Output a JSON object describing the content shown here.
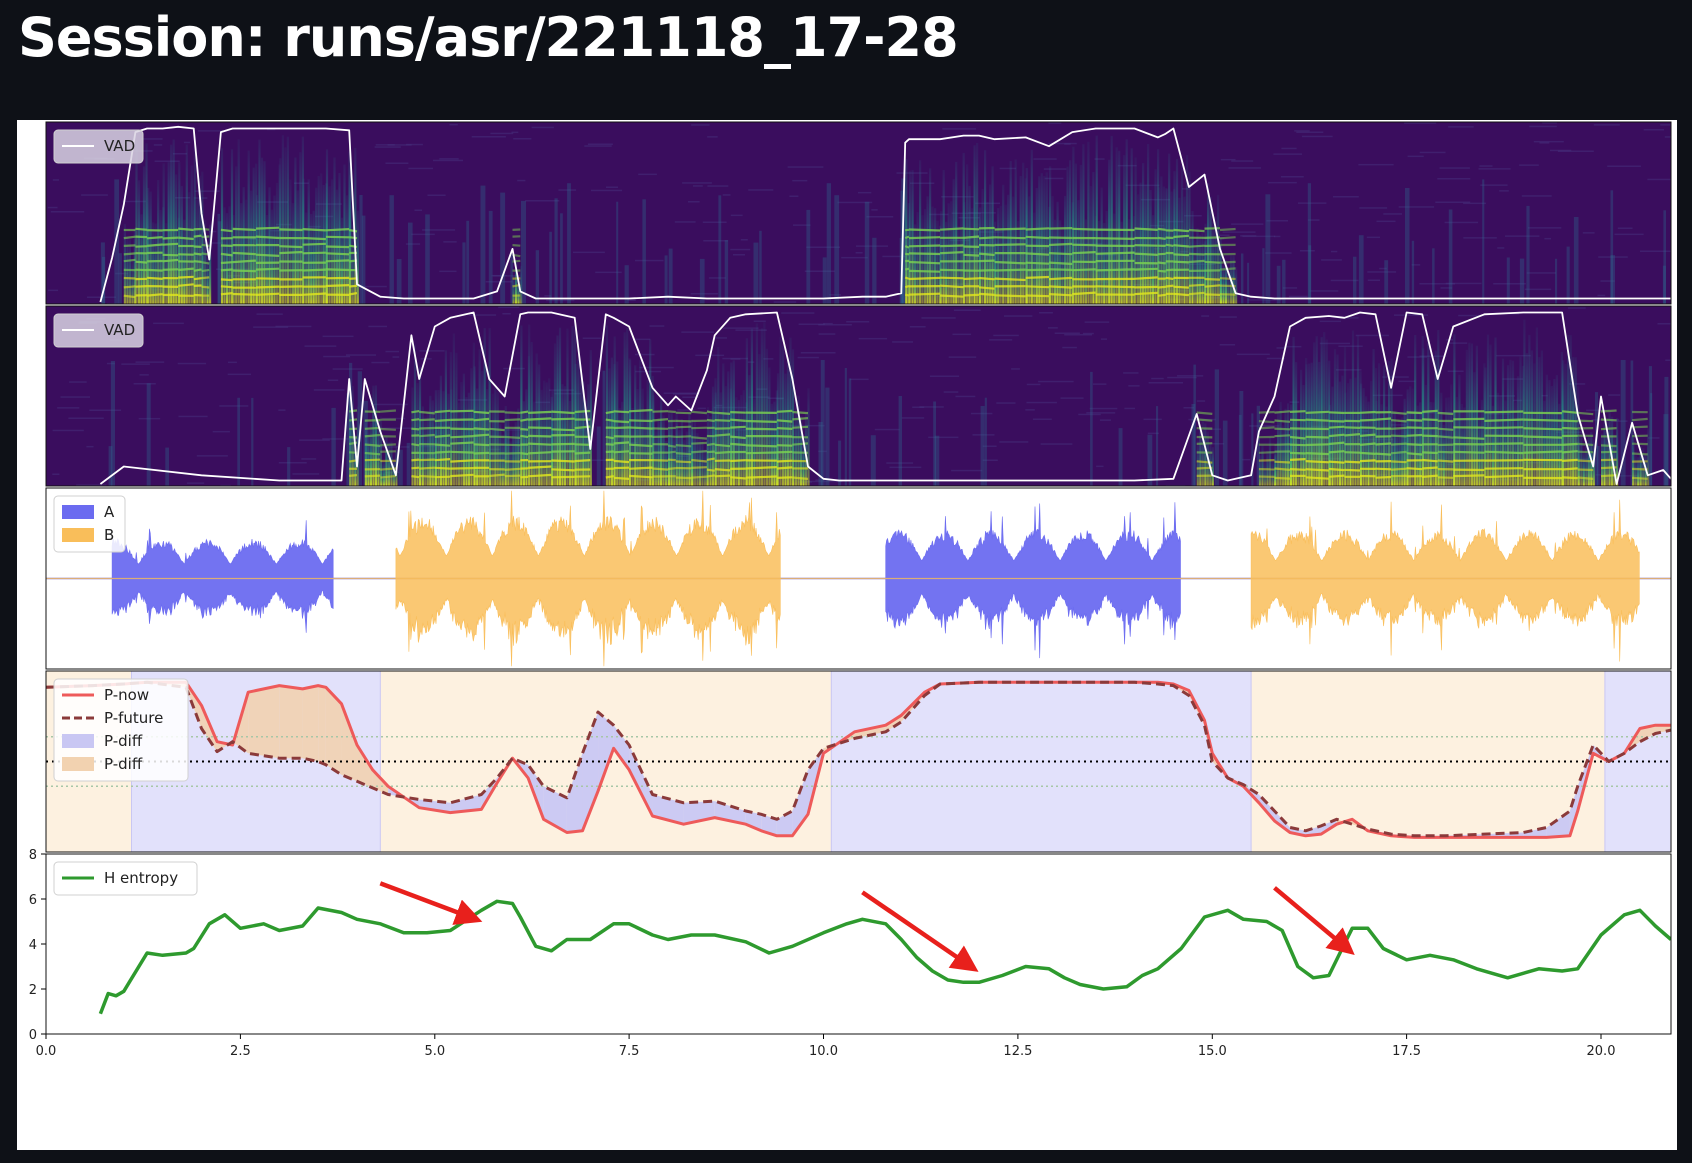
{
  "page": {
    "title": "Session: runs/asr/221118_17-28"
  },
  "colors": {
    "background": "#0e1117",
    "speaker_a": "#6b6bf0",
    "speaker_b": "#f9be5a",
    "p_now": "#ee5a5a",
    "p_future": "#8b3a3a",
    "p_diff_a": "#c9c7f3",
    "p_diff_b": "#f2d2b0",
    "entropy": "#2e9a2e",
    "arrows": "#e8201c",
    "vad": "#ffffff"
  },
  "chart_data": [
    {
      "type": "heatmap",
      "panel": "spectrogram-a",
      "xlim": [
        0,
        20.9
      ],
      "ylim": [
        0,
        1
      ],
      "legend": {
        "entries": [
          "VAD"
        ],
        "placement": "top-left"
      },
      "series": [
        {
          "name": "VAD",
          "x": [
            0.7,
            0.85,
            1.0,
            1.15,
            1.3,
            1.5,
            1.7,
            1.9,
            2.0,
            2.1,
            2.25,
            2.4,
            2.7,
            3.0,
            3.3,
            3.6,
            3.9,
            4.0,
            4.3,
            4.6,
            5.0,
            5.5,
            5.8,
            6.0,
            6.1,
            6.3,
            6.6,
            7.0,
            7.5,
            8.0,
            8.5,
            9.0,
            9.5,
            10.0,
            10.5,
            10.8,
            11.0,
            11.05,
            11.1,
            11.5,
            11.8,
            12.0,
            12.2,
            12.6,
            12.9,
            13.2,
            13.5,
            14.0,
            14.3,
            14.4,
            14.5,
            14.7,
            14.9,
            15.1,
            15.3,
            15.5,
            15.8,
            16.0,
            16.5,
            17.0,
            17.5,
            18.0,
            18.5,
            19.0,
            19.5,
            20.0,
            20.5,
            20.9
          ],
          "values": [
            0.0,
            0.25,
            0.55,
            0.96,
            0.98,
            0.98,
            0.99,
            0.98,
            0.5,
            0.24,
            0.96,
            0.98,
            0.98,
            0.98,
            0.98,
            0.98,
            0.97,
            0.1,
            0.03,
            0.02,
            0.02,
            0.02,
            0.06,
            0.3,
            0.06,
            0.02,
            0.02,
            0.02,
            0.02,
            0.03,
            0.02,
            0.02,
            0.02,
            0.02,
            0.03,
            0.03,
            0.05,
            0.9,
            0.92,
            0.92,
            0.94,
            0.94,
            0.92,
            0.93,
            0.88,
            0.96,
            0.98,
            0.98,
            0.93,
            0.95,
            0.98,
            0.65,
            0.72,
            0.3,
            0.05,
            0.03,
            0.02,
            0.02,
            0.02,
            0.02,
            0.02,
            0.02,
            0.02,
            0.02,
            0.02,
            0.02,
            0.02,
            0.02
          ]
        }
      ]
    },
    {
      "type": "heatmap",
      "panel": "spectrogram-b",
      "xlim": [
        0,
        20.9
      ],
      "ylim": [
        0,
        1
      ],
      "legend": {
        "entries": [
          "VAD"
        ],
        "placement": "top-left"
      },
      "series": [
        {
          "name": "VAD",
          "x": [
            0.7,
            1.0,
            2.0,
            3.0,
            3.8,
            3.9,
            4.0,
            4.1,
            4.3,
            4.5,
            4.7,
            4.8,
            5.0,
            5.2,
            5.5,
            5.7,
            5.9,
            6.1,
            6.2,
            6.5,
            6.8,
            7.0,
            7.2,
            7.3,
            7.5,
            7.8,
            8.0,
            8.1,
            8.3,
            8.5,
            8.6,
            8.8,
            9.0,
            9.4,
            9.6,
            9.8,
            10.0,
            10.2,
            10.5,
            11.0,
            12.0,
            13.0,
            14.0,
            14.5,
            14.8,
            15.0,
            15.2,
            15.5,
            15.6,
            15.8,
            16.0,
            16.2,
            16.5,
            16.7,
            16.9,
            17.1,
            17.3,
            17.5,
            17.7,
            17.9,
            18.1,
            18.5,
            19.0,
            19.5,
            19.7,
            19.9,
            20.0,
            20.2,
            20.4,
            20.6,
            20.8,
            20.9
          ],
          "values": [
            0.0,
            0.1,
            0.05,
            0.02,
            0.02,
            0.6,
            0.1,
            0.6,
            0.3,
            0.05,
            0.85,
            0.6,
            0.9,
            0.95,
            0.98,
            0.6,
            0.5,
            0.97,
            0.98,
            0.98,
            0.95,
            0.2,
            0.97,
            0.95,
            0.9,
            0.55,
            0.45,
            0.5,
            0.42,
            0.65,
            0.85,
            0.95,
            0.97,
            0.98,
            0.6,
            0.1,
            0.03,
            0.02,
            0.02,
            0.02,
            0.02,
            0.02,
            0.02,
            0.03,
            0.4,
            0.05,
            0.02,
            0.05,
            0.3,
            0.5,
            0.9,
            0.95,
            0.96,
            0.95,
            0.98,
            0.97,
            0.55,
            0.98,
            0.97,
            0.6,
            0.9,
            0.97,
            0.98,
            0.98,
            0.4,
            0.1,
            0.5,
            0.0,
            0.35,
            0.05,
            0.08,
            0.03
          ]
        }
      ]
    },
    {
      "type": "area",
      "panel": "waveform",
      "xlim": [
        0,
        20.9
      ],
      "ylim": [
        -1,
        1
      ],
      "legend": {
        "entries": [
          "A",
          "B"
        ],
        "placement": "top-left"
      },
      "series": [
        {
          "name": "A",
          "segments": [
            {
              "start": 0.85,
              "end": 3.7,
              "amp": 0.45
            },
            {
              "start": 10.8,
              "end": 14.6,
              "amp": 0.55
            }
          ]
        },
        {
          "name": "B",
          "segments": [
            {
              "start": 4.5,
              "end": 9.45,
              "amp": 0.7
            },
            {
              "start": 15.5,
              "end": 20.5,
              "amp": 0.55
            }
          ]
        }
      ]
    },
    {
      "type": "line",
      "panel": "probabilities",
      "xlim": [
        0,
        20.9
      ],
      "ylim": [
        0,
        1
      ],
      "legend": {
        "entries": [
          "P-now",
          "P-future",
          "P-diff",
          "P-diff"
        ],
        "placement": "top-left"
      },
      "background_bands": [
        {
          "start": 0.0,
          "end": 1.1,
          "speaker": "B"
        },
        {
          "start": 1.1,
          "end": 4.3,
          "speaker": "A"
        },
        {
          "start": 4.3,
          "end": 10.1,
          "speaker": "B"
        },
        {
          "start": 10.1,
          "end": 15.5,
          "speaker": "A"
        },
        {
          "start": 15.5,
          "end": 20.05,
          "speaker": "B"
        },
        {
          "start": 20.05,
          "end": 20.9,
          "speaker": "A"
        }
      ],
      "reference_lines": [
        0.35,
        0.5,
        0.65
      ],
      "series": [
        {
          "name": "P-now",
          "x": [
            0.0,
            0.6,
            1.0,
            1.3,
            1.8,
            2.0,
            2.2,
            2.4,
            2.6,
            3.0,
            3.3,
            3.5,
            3.6,
            3.8,
            4.0,
            4.2,
            4.4,
            4.8,
            5.2,
            5.6,
            5.8,
            6.0,
            6.2,
            6.4,
            6.7,
            6.9,
            7.1,
            7.3,
            7.5,
            7.8,
            8.2,
            8.6,
            9.0,
            9.2,
            9.4,
            9.6,
            9.8,
            10.0,
            10.4,
            10.8,
            11.0,
            11.3,
            11.5,
            12.0,
            12.5,
            13.0,
            13.5,
            14.0,
            14.3,
            14.5,
            14.7,
            14.9,
            15.0,
            15.2,
            15.4,
            15.6,
            15.8,
            16.0,
            16.2,
            16.4,
            16.6,
            16.8,
            17.0,
            17.3,
            17.6,
            18.0,
            18.5,
            19.0,
            19.3,
            19.6,
            19.7,
            19.9,
            20.1,
            20.3,
            20.5,
            20.7,
            20.9
          ],
          "values": [
            0.95,
            0.96,
            0.97,
            0.98,
            0.98,
            0.84,
            0.62,
            0.6,
            0.92,
            0.96,
            0.94,
            0.96,
            0.95,
            0.85,
            0.6,
            0.45,
            0.35,
            0.22,
            0.19,
            0.21,
            0.37,
            0.52,
            0.4,
            0.15,
            0.07,
            0.08,
            0.32,
            0.58,
            0.45,
            0.17,
            0.12,
            0.16,
            0.12,
            0.08,
            0.05,
            0.05,
            0.18,
            0.55,
            0.68,
            0.72,
            0.78,
            0.92,
            0.97,
            0.98,
            0.98,
            0.98,
            0.98,
            0.98,
            0.98,
            0.97,
            0.93,
            0.75,
            0.55,
            0.4,
            0.35,
            0.25,
            0.14,
            0.07,
            0.05,
            0.06,
            0.12,
            0.15,
            0.08,
            0.05,
            0.04,
            0.04,
            0.04,
            0.04,
            0.04,
            0.05,
            0.2,
            0.55,
            0.5,
            0.55,
            0.7,
            0.72,
            0.72
          ]
        },
        {
          "name": "P-future",
          "x": [
            0.0,
            0.6,
            1.0,
            1.3,
            1.8,
            2.0,
            2.2,
            2.4,
            2.6,
            3.0,
            3.3,
            3.5,
            3.6,
            3.8,
            4.0,
            4.2,
            4.4,
            4.8,
            5.2,
            5.6,
            5.8,
            6.0,
            6.2,
            6.4,
            6.7,
            6.9,
            7.1,
            7.3,
            7.5,
            7.8,
            8.2,
            8.6,
            9.0,
            9.2,
            9.4,
            9.6,
            9.8,
            10.0,
            10.4,
            10.8,
            11.0,
            11.3,
            11.5,
            12.0,
            12.5,
            13.0,
            13.5,
            14.0,
            14.3,
            14.5,
            14.7,
            14.9,
            15.0,
            15.2,
            15.4,
            15.6,
            15.8,
            16.0,
            16.2,
            16.4,
            16.6,
            16.8,
            17.0,
            17.3,
            17.6,
            18.0,
            18.5,
            19.0,
            19.3,
            19.6,
            19.7,
            19.9,
            20.1,
            20.3,
            20.5,
            20.7,
            20.9
          ],
          "values": [
            0.95,
            0.96,
            0.97,
            0.98,
            0.95,
            0.7,
            0.56,
            0.62,
            0.55,
            0.52,
            0.52,
            0.5,
            0.48,
            0.42,
            0.38,
            0.34,
            0.3,
            0.27,
            0.25,
            0.3,
            0.4,
            0.52,
            0.48,
            0.35,
            0.28,
            0.55,
            0.8,
            0.72,
            0.6,
            0.3,
            0.25,
            0.26,
            0.2,
            0.18,
            0.15,
            0.2,
            0.45,
            0.58,
            0.64,
            0.68,
            0.74,
            0.9,
            0.97,
            0.98,
            0.98,
            0.98,
            0.98,
            0.98,
            0.97,
            0.96,
            0.9,
            0.72,
            0.5,
            0.4,
            0.36,
            0.3,
            0.2,
            0.1,
            0.08,
            0.11,
            0.15,
            0.12,
            0.09,
            0.06,
            0.05,
            0.05,
            0.06,
            0.07,
            0.1,
            0.2,
            0.35,
            0.6,
            0.5,
            0.55,
            0.62,
            0.67,
            0.69
          ]
        }
      ]
    },
    {
      "type": "line",
      "panel": "entropy",
      "xlim": [
        0,
        20.9
      ],
      "ylim": [
        0,
        8
      ],
      "xticks": [
        "0.0",
        "2.5",
        "5.0",
        "7.5",
        "10.0",
        "12.5",
        "15.0",
        "17.5",
        "20.0"
      ],
      "xtick_values": [
        0,
        2.5,
        5,
        7.5,
        10,
        12.5,
        15,
        17.5,
        20
      ],
      "yticks": [
        "0",
        "2",
        "4",
        "6",
        "8"
      ],
      "ytick_values": [
        0,
        2,
        4,
        6,
        8
      ],
      "legend": {
        "entries": [
          "H entropy"
        ],
        "placement": "top-left"
      },
      "series": [
        {
          "name": "H entropy",
          "x": [
            0.7,
            0.8,
            0.9,
            1.0,
            1.3,
            1.5,
            1.8,
            1.9,
            2.1,
            2.3,
            2.5,
            2.8,
            3.0,
            3.3,
            3.5,
            3.8,
            4.0,
            4.3,
            4.6,
            4.9,
            5.2,
            5.6,
            5.8,
            6.0,
            6.1,
            6.3,
            6.5,
            6.7,
            7.0,
            7.3,
            7.5,
            7.8,
            8.0,
            8.3,
            8.6,
            9.0,
            9.3,
            9.6,
            10.0,
            10.3,
            10.5,
            10.8,
            11.0,
            11.2,
            11.4,
            11.6,
            11.8,
            12.0,
            12.3,
            12.6,
            12.9,
            13.1,
            13.3,
            13.6,
            13.9,
            14.1,
            14.3,
            14.6,
            14.9,
            15.2,
            15.4,
            15.7,
            15.9,
            16.1,
            16.3,
            16.5,
            16.7,
            16.8,
            17.0,
            17.2,
            17.5,
            17.8,
            18.1,
            18.4,
            18.8,
            19.2,
            19.5,
            19.7,
            20.0,
            20.3,
            20.5,
            20.7,
            20.9
          ],
          "values": [
            0.9,
            1.8,
            1.7,
            1.9,
            3.6,
            3.5,
            3.6,
            3.8,
            4.9,
            5.3,
            4.7,
            4.9,
            4.6,
            4.8,
            5.6,
            5.4,
            5.1,
            4.9,
            4.5,
            4.5,
            4.6,
            5.5,
            5.9,
            5.8,
            5.2,
            3.9,
            3.7,
            4.2,
            4.2,
            4.9,
            4.9,
            4.4,
            4.2,
            4.4,
            4.4,
            4.1,
            3.6,
            3.9,
            4.5,
            4.9,
            5.1,
            4.9,
            4.2,
            3.4,
            2.8,
            2.4,
            2.3,
            2.3,
            2.6,
            3.0,
            2.9,
            2.5,
            2.2,
            2.0,
            2.1,
            2.6,
            2.9,
            3.8,
            5.2,
            5.5,
            5.1,
            5.0,
            4.6,
            3.0,
            2.5,
            2.6,
            4.0,
            4.7,
            4.7,
            3.8,
            3.3,
            3.5,
            3.3,
            2.9,
            2.5,
            2.9,
            2.8,
            2.9,
            4.4,
            5.3,
            5.5,
            4.8,
            4.2
          ]
        }
      ],
      "annotations": [
        {
          "type": "arrow",
          "from": [
            4.3,
            6.7
          ],
          "to": [
            5.45,
            5.2
          ]
        },
        {
          "type": "arrow",
          "from": [
            10.5,
            6.3
          ],
          "to": [
            11.85,
            3.1
          ]
        },
        {
          "type": "arrow",
          "from": [
            15.8,
            6.5
          ],
          "to": [
            16.7,
            3.9
          ]
        }
      ]
    }
  ]
}
